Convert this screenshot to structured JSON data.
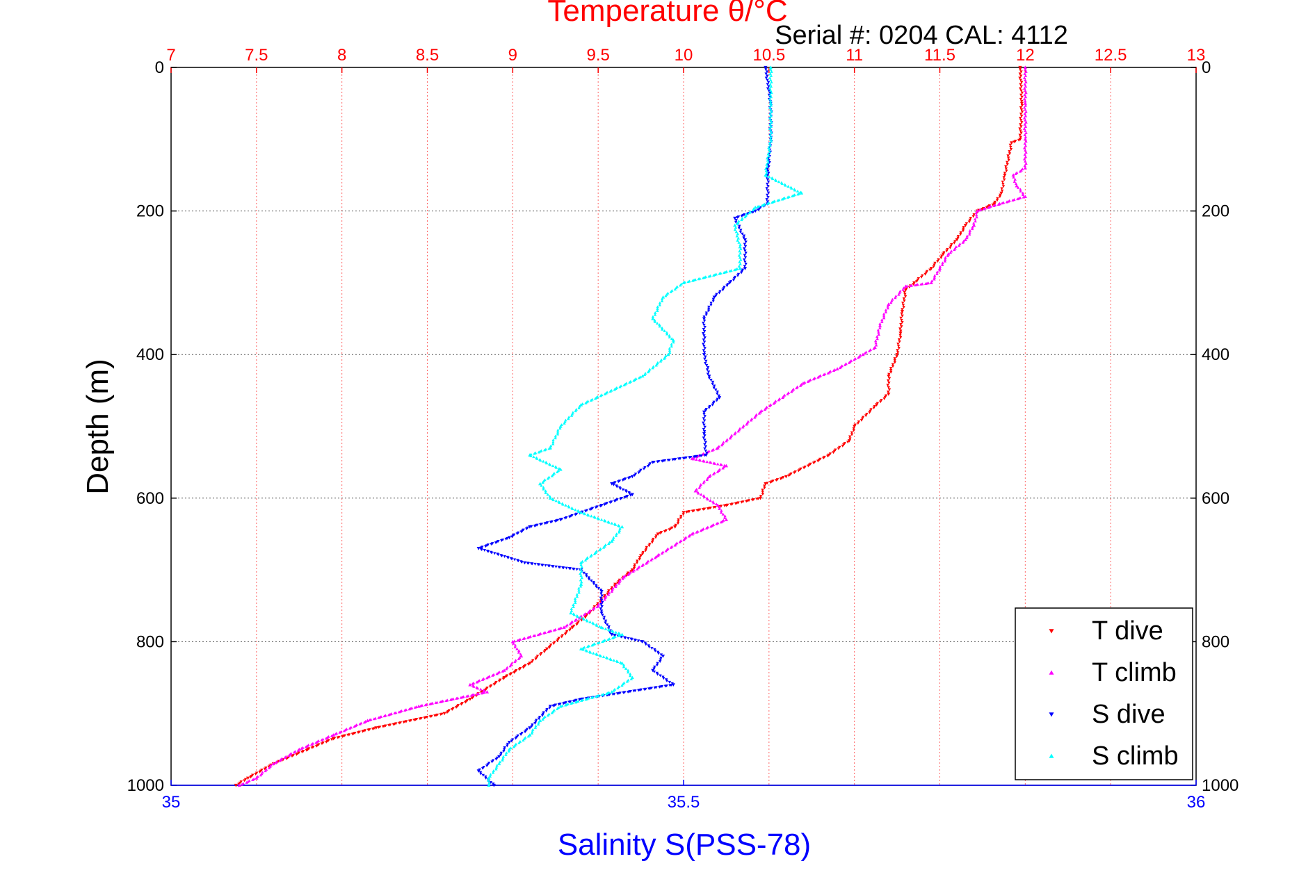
{
  "chart_data": {
    "type": "scatter",
    "title": "Temperature θ/°C",
    "subtitle": "Serial #: 0204  CAL: 4112",
    "ylabel": "Depth (m)",
    "xlabel": "Salinity S(PSS-78)",
    "temperature_axis": {
      "label": "Temperature θ/°C",
      "range": [
        7,
        13
      ],
      "ticks": [
        "7",
        "7.5",
        "8",
        "8.5",
        "9",
        "9.5",
        "10",
        "10.5",
        "11",
        "11.5",
        "12",
        "12.5",
        "13"
      ],
      "color": "#ff0000"
    },
    "salinity_axis": {
      "label": "Salinity S(PSS-78)",
      "range": [
        35,
        36
      ],
      "ticks": [
        "35",
        "35.5",
        "36"
      ],
      "color": "#0000ff"
    },
    "depth_axis": {
      "range": [
        0,
        1000
      ],
      "reversed": true,
      "ticks": [
        "0",
        "200",
        "400",
        "600",
        "800",
        "1000"
      ]
    },
    "grid": true,
    "legend_position": "bottom-right",
    "series": [
      {
        "name": "T dive",
        "axis": "temperature",
        "marker": "triangle-down",
        "color": "#ff0000",
        "points": [
          [
            11.97,
            0
          ],
          [
            11.98,
            50
          ],
          [
            11.97,
            100
          ],
          [
            11.92,
            105
          ],
          [
            11.88,
            150
          ],
          [
            11.86,
            175
          ],
          [
            11.82,
            190
          ],
          [
            11.72,
            200
          ],
          [
            11.65,
            220
          ],
          [
            11.6,
            240
          ],
          [
            11.52,
            260
          ],
          [
            11.45,
            280
          ],
          [
            11.35,
            300
          ],
          [
            11.3,
            310
          ],
          [
            11.28,
            340
          ],
          [
            11.27,
            370
          ],
          [
            11.25,
            400
          ],
          [
            11.2,
            430
          ],
          [
            11.2,
            455
          ],
          [
            11.13,
            470
          ],
          [
            11.0,
            500
          ],
          [
            10.97,
            520
          ],
          [
            10.85,
            540
          ],
          [
            10.6,
            570
          ],
          [
            10.48,
            580
          ],
          [
            10.45,
            600
          ],
          [
            10.25,
            610
          ],
          [
            10.0,
            620
          ],
          [
            9.95,
            640
          ],
          [
            9.85,
            650
          ],
          [
            9.75,
            680
          ],
          [
            9.7,
            700
          ],
          [
            9.6,
            720
          ],
          [
            9.45,
            760
          ],
          [
            9.35,
            780
          ],
          [
            9.2,
            810
          ],
          [
            9.1,
            830
          ],
          [
            8.95,
            850
          ],
          [
            8.75,
            880
          ],
          [
            8.6,
            900
          ],
          [
            8.2,
            920
          ],
          [
            7.95,
            935
          ],
          [
            7.8,
            950
          ],
          [
            7.6,
            970
          ],
          [
            7.45,
            990
          ],
          [
            7.38,
            1000
          ]
        ]
      },
      {
        "name": "T climb",
        "axis": "temperature",
        "marker": "triangle-up",
        "color": "#ff00ff",
        "points": [
          [
            12.0,
            0
          ],
          [
            12.0,
            50
          ],
          [
            12.0,
            100
          ],
          [
            12.0,
            140
          ],
          [
            11.93,
            150
          ],
          [
            11.95,
            165
          ],
          [
            12.0,
            180
          ],
          [
            11.85,
            190
          ],
          [
            11.72,
            200
          ],
          [
            11.7,
            220
          ],
          [
            11.65,
            240
          ],
          [
            11.55,
            260
          ],
          [
            11.5,
            280
          ],
          [
            11.45,
            300
          ],
          [
            11.3,
            305
          ],
          [
            11.2,
            330
          ],
          [
            11.15,
            360
          ],
          [
            11.12,
            390
          ],
          [
            11.05,
            400
          ],
          [
            10.9,
            420
          ],
          [
            10.7,
            440
          ],
          [
            10.45,
            480
          ],
          [
            10.2,
            530
          ],
          [
            10.05,
            545
          ],
          [
            10.25,
            555
          ],
          [
            10.15,
            570
          ],
          [
            10.07,
            590
          ],
          [
            10.2,
            610
          ],
          [
            10.25,
            630
          ],
          [
            10.05,
            650
          ],
          [
            9.85,
            680
          ],
          [
            9.65,
            710
          ],
          [
            9.5,
            750
          ],
          [
            9.3,
            780
          ],
          [
            9.0,
            800
          ],
          [
            9.05,
            820
          ],
          [
            8.95,
            840
          ],
          [
            8.75,
            860
          ],
          [
            8.85,
            870
          ],
          [
            8.45,
            890
          ],
          [
            8.15,
            910
          ],
          [
            7.95,
            930
          ],
          [
            7.75,
            950
          ],
          [
            7.6,
            970
          ],
          [
            7.5,
            990
          ],
          [
            7.4,
            1000
          ]
        ]
      },
      {
        "name": "S dive",
        "axis": "salinity",
        "marker": "triangle-down",
        "color": "#0000ff",
        "points": [
          [
            35.58,
            0
          ],
          [
            35.585,
            50
          ],
          [
            35.585,
            100
          ],
          [
            35.582,
            150
          ],
          [
            35.582,
            190
          ],
          [
            35.57,
            200
          ],
          [
            35.55,
            210
          ],
          [
            35.56,
            240
          ],
          [
            35.56,
            280
          ],
          [
            35.545,
            300
          ],
          [
            35.53,
            320
          ],
          [
            35.52,
            350
          ],
          [
            35.52,
            400
          ],
          [
            35.525,
            430
          ],
          [
            35.535,
            460
          ],
          [
            35.52,
            480
          ],
          [
            35.52,
            510
          ],
          [
            35.522,
            540
          ],
          [
            35.47,
            550
          ],
          [
            35.45,
            570
          ],
          [
            35.43,
            580
          ],
          [
            35.45,
            595
          ],
          [
            35.42,
            610
          ],
          [
            35.38,
            630
          ],
          [
            35.35,
            640
          ],
          [
            35.33,
            655
          ],
          [
            35.3,
            670
          ],
          [
            35.345,
            690
          ],
          [
            35.4,
            700
          ],
          [
            35.42,
            730
          ],
          [
            35.42,
            760
          ],
          [
            35.43,
            790
          ],
          [
            35.46,
            800
          ],
          [
            35.48,
            820
          ],
          [
            35.47,
            840
          ],
          [
            35.49,
            860
          ],
          [
            35.4,
            880
          ],
          [
            35.37,
            890
          ],
          [
            35.35,
            920
          ],
          [
            35.33,
            940
          ],
          [
            35.32,
            960
          ],
          [
            35.3,
            980
          ],
          [
            35.315,
            1000
          ]
        ]
      },
      {
        "name": "S climb",
        "axis": "salinity",
        "marker": "triangle-up",
        "color": "#00ffff",
        "points": [
          [
            35.585,
            0
          ],
          [
            35.585,
            50
          ],
          [
            35.585,
            100
          ],
          [
            35.58,
            150
          ],
          [
            35.615,
            175
          ],
          [
            35.57,
            195
          ],
          [
            35.55,
            220
          ],
          [
            35.555,
            250
          ],
          [
            35.555,
            280
          ],
          [
            35.5,
            300
          ],
          [
            35.48,
            320
          ],
          [
            35.47,
            350
          ],
          [
            35.49,
            380
          ],
          [
            35.485,
            400
          ],
          [
            35.46,
            430
          ],
          [
            35.4,
            470
          ],
          [
            35.38,
            500
          ],
          [
            35.37,
            530
          ],
          [
            35.35,
            540
          ],
          [
            35.38,
            560
          ],
          [
            35.36,
            580
          ],
          [
            35.37,
            600
          ],
          [
            35.4,
            620
          ],
          [
            35.44,
            640
          ],
          [
            35.43,
            660
          ],
          [
            35.4,
            690
          ],
          [
            35.4,
            720
          ],
          [
            35.39,
            760
          ],
          [
            35.42,
            780
          ],
          [
            35.44,
            790
          ],
          [
            35.4,
            810
          ],
          [
            35.44,
            830
          ],
          [
            35.45,
            850
          ],
          [
            35.43,
            870
          ],
          [
            35.38,
            890
          ],
          [
            35.36,
            910
          ],
          [
            35.35,
            930
          ],
          [
            35.33,
            950
          ],
          [
            35.32,
            970
          ],
          [
            35.31,
            990
          ],
          [
            35.31,
            1000
          ]
        ]
      }
    ]
  }
}
